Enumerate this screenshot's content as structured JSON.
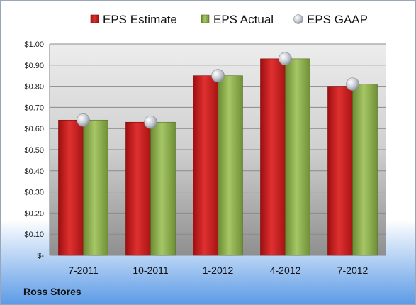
{
  "chart_data": {
    "type": "bar",
    "categories": [
      "7-2011",
      "10-2011",
      "1-2012",
      "4-2012",
      "7-2012"
    ],
    "series": [
      {
        "name": "EPS Estimate",
        "kind": "bar",
        "color": "#d42020",
        "values": [
          0.64,
          0.63,
          0.85,
          0.93,
          0.8
        ]
      },
      {
        "name": "EPS Actual",
        "kind": "bar",
        "color": "#8db04a",
        "values": [
          0.64,
          0.63,
          0.85,
          0.93,
          0.81
        ]
      },
      {
        "name": "EPS GAAP",
        "kind": "marker",
        "color": "#b8bcc4",
        "values": [
          0.64,
          0.63,
          0.85,
          0.93,
          0.81
        ]
      }
    ],
    "ylim": [
      0,
      1.0
    ],
    "yticks": [
      0,
      0.1,
      0.2,
      0.3,
      0.4,
      0.5,
      0.6,
      0.7,
      0.8,
      0.9,
      1.0
    ],
    "ytick_labels": [
      "$-",
      "$0.10",
      "$0.20",
      "$0.30",
      "$0.40",
      "$0.50",
      "$0.60",
      "$0.70",
      "$0.80",
      "$0.90",
      "$1.00"
    ],
    "grid": true,
    "legend": "top"
  },
  "company_label": "Ross Stores"
}
